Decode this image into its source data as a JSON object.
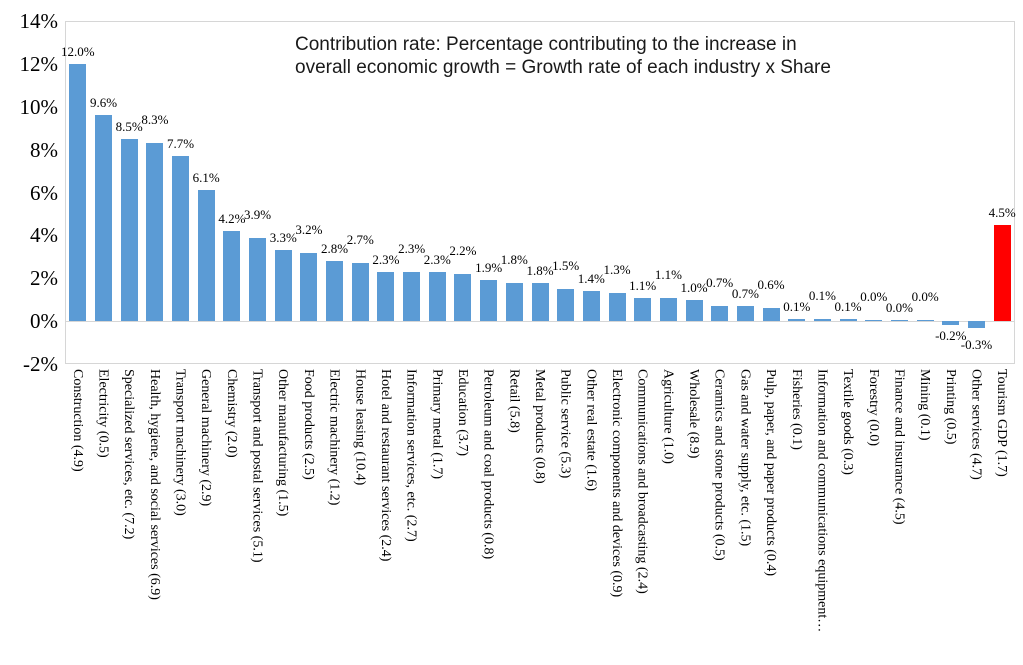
{
  "title": {
    "line1": "Contribution rate: Percentage contributing to the increase in",
    "line2": "overall economic growth = Growth rate of each industry x Share"
  },
  "chart_data": {
    "type": "bar",
    "title": "Contribution rate: Percentage contributing to the increase in overall economic growth = Growth rate of each industry x Share",
    "xlabel": "",
    "ylabel": "",
    "ylim": [
      -2,
      14
    ],
    "y_tick_step": 2,
    "y_ticks": [
      "14%",
      "12%",
      "10%",
      "8%",
      "6%",
      "4%",
      "2%",
      "0%",
      "-2%"
    ],
    "grid": false,
    "legend": false,
    "categories": [
      "Construction (4.9)",
      "Electricity (0.5)",
      "Specialized services, etc. (7.2)",
      "Health, hygiene, and social services (6.9)",
      "Transport machinery (3.0)",
      "General machinery (2.9)",
      "Chemistry (2.0)",
      "Transport and postal services (5.1)",
      "Other manufacturing (1.5)",
      "Food products (2.5)",
      "Electric machinery (1.2)",
      "House leasing (10.4)",
      "Hotel and restaurant services (2.4)",
      "Information services, etc. (2.7)",
      "Primary metal (1.7)",
      "Education (3.7)",
      "Petroleum and coal products (0.8)",
      "Retail (5.8)",
      "Metal products (0.8)",
      "Public service (5.3)",
      "Other real estate (1.6)",
      "Electronic components and devices (0.9)",
      "Communications and broadcasting (2.4)",
      "Agriculture (1.0)",
      "Wholesale (8.9)",
      "Ceramics and stone products (0.5)",
      "Gas and water supply, etc. (1.5)",
      "Pulp, paper, and paper products (0.4)",
      "Fisheries (0.1)",
      "Information and communications equipment…",
      "Textile goods (0.3)",
      "Forestry (0.0)",
      "Finance and insurance (4.5)",
      "Mining (0.1)",
      "Printing (0.5)",
      "Other services (4.7)",
      "Tourism GDP (1.7)"
    ],
    "values": [
      12.0,
      9.6,
      8.5,
      8.3,
      7.7,
      6.1,
      4.2,
      3.9,
      3.3,
      3.2,
      2.8,
      2.7,
      2.3,
      2.3,
      2.3,
      2.2,
      1.9,
      1.8,
      1.8,
      1.5,
      1.4,
      1.3,
      1.1,
      1.1,
      1.0,
      0.7,
      0.7,
      0.6,
      0.1,
      0.1,
      0.1,
      0.0,
      0.0,
      0.0,
      -0.2,
      -0.3,
      4.5
    ],
    "value_labels": [
      "12.0%",
      "9.6%",
      "8.5%",
      "8.3%",
      "7.7%",
      "6.1%",
      "4.2%",
      "3.9%",
      "3.3%",
      "3.2%",
      "2.8%",
      "2.7%",
      "2.3%",
      "2.3%",
      "2.3%",
      "2.2%",
      "1.9%",
      "1.8%",
      "1.8%",
      "1.5%",
      "1.4%",
      "1.3%",
      "1.1%",
      "1.1%",
      "1.0%",
      "0.7%",
      "0.7%",
      "0.6%",
      "0.1%",
      "0.1%",
      "0.1%",
      "0.0%",
      "0.0%",
      "0.0%",
      "-0.2%",
      "-0.3%",
      "4.5%"
    ],
    "colors": {
      "bar_default": "#5B9BD5",
      "bar_highlight": "#FF0000",
      "axis_line": "#d6d6d6",
      "text": "#000000"
    },
    "highlight_index": 36,
    "legend_position": "none"
  }
}
